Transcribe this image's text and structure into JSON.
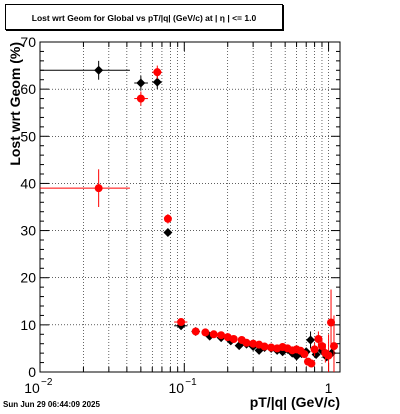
{
  "chart_data": {
    "type": "scatter",
    "title": "Lost wrt Geom for Global vs pT/|q| (GeV/c) at |  η  | <= 1.0",
    "xlabel": "pT/|q| (GeV/c)",
    "ylabel": "Lost wrt Geom (%)",
    "xscale": "log",
    "xlim": [
      0.01,
      1.2
    ],
    "ylim": [
      0,
      70
    ],
    "grid": true,
    "x_tick_labels": [
      "10",
      "−2",
      "10",
      "−1",
      "1"
    ],
    "y_tick_labels": [
      "0",
      "10",
      "20",
      "30",
      "40",
      "50",
      "60",
      "70"
    ],
    "series": [
      {
        "color": "#000000",
        "marker": "diamond",
        "points": [
          {
            "x": 0.0255,
            "y": 64.0,
            "xlo": 0.01,
            "xhi": 0.042,
            "ylo": 62.0,
            "yhi": 66.0
          },
          {
            "x": 0.05,
            "y": 61.3,
            "xlo": 0.045,
            "xhi": 0.056,
            "ylo": 59.8,
            "yhi": 62.8
          },
          {
            "x": 0.065,
            "y": 61.5,
            "xlo": 0.06,
            "xhi": 0.07,
            "ylo": 60.0,
            "yhi": 63.0
          },
          {
            "x": 0.077,
            "y": 29.6,
            "xlo": 0.074,
            "xhi": 0.08,
            "ylo": 28.8,
            "yhi": 30.4
          },
          {
            "x": 0.095,
            "y": 9.8,
            "xlo": 0.085,
            "xhi": 0.105,
            "ylo": 9.2,
            "yhi": 10.4
          },
          {
            "x": 0.12,
            "y": 8.6
          },
          {
            "x": 0.15,
            "y": 7.6
          },
          {
            "x": 0.18,
            "y": 7.3
          },
          {
            "x": 0.21,
            "y": 6.6
          },
          {
            "x": 0.24,
            "y": 5.6
          },
          {
            "x": 0.27,
            "y": 5.9
          },
          {
            "x": 0.3,
            "y": 5.4
          },
          {
            "x": 0.33,
            "y": 4.6
          },
          {
            "x": 0.36,
            "y": 5.2
          },
          {
            "x": 0.4,
            "y": 5.0
          },
          {
            "x": 0.44,
            "y": 4.6
          },
          {
            "x": 0.48,
            "y": 4.3
          },
          {
            "x": 0.52,
            "y": 4.8
          },
          {
            "x": 0.56,
            "y": 4.0
          },
          {
            "x": 0.6,
            "y": 3.4
          },
          {
            "x": 0.65,
            "y": 3.9
          },
          {
            "x": 0.7,
            "y": 4.3
          },
          {
            "x": 0.75,
            "y": 6.8,
            "ylo": 5.0,
            "yhi": 8.6
          },
          {
            "x": 0.82,
            "y": 3.7
          },
          {
            "x": 0.9,
            "y": 4.5
          },
          {
            "x": 0.97,
            "y": 3.2
          },
          {
            "x": 1.05,
            "y": 4.0
          }
        ]
      },
      {
        "color": "#ff0000",
        "marker": "circle",
        "points": [
          {
            "x": 0.0255,
            "y": 39.0,
            "xlo": 0.01,
            "xhi": 0.042,
            "ylo": 35.0,
            "yhi": 43.0
          },
          {
            "x": 0.05,
            "y": 58.0,
            "xlo": 0.045,
            "xhi": 0.056,
            "ylo": 56.5,
            "yhi": 59.5
          },
          {
            "x": 0.065,
            "y": 63.6,
            "xlo": 0.06,
            "xhi": 0.07,
            "ylo": 62.2,
            "yhi": 65.0
          },
          {
            "x": 0.077,
            "y": 32.5,
            "xlo": 0.074,
            "xhi": 0.08,
            "ylo": 31.5,
            "yhi": 33.5
          },
          {
            "x": 0.095,
            "y": 10.6,
            "xlo": 0.085,
            "xhi": 0.105,
            "ylo": 10.0,
            "yhi": 11.2
          },
          {
            "x": 0.12,
            "y": 8.6
          },
          {
            "x": 0.14,
            "y": 8.4
          },
          {
            "x": 0.16,
            "y": 8.0
          },
          {
            "x": 0.18,
            "y": 7.8
          },
          {
            "x": 0.2,
            "y": 7.4
          },
          {
            "x": 0.22,
            "y": 7.0
          },
          {
            "x": 0.25,
            "y": 6.8
          },
          {
            "x": 0.27,
            "y": 6.2
          },
          {
            "x": 0.3,
            "y": 6.0
          },
          {
            "x": 0.33,
            "y": 5.8
          },
          {
            "x": 0.36,
            "y": 5.4
          },
          {
            "x": 0.4,
            "y": 5.2
          },
          {
            "x": 0.44,
            "y": 5.0
          },
          {
            "x": 0.48,
            "y": 5.3
          },
          {
            "x": 0.52,
            "y": 5.0
          },
          {
            "x": 0.56,
            "y": 4.6
          },
          {
            "x": 0.6,
            "y": 4.8
          },
          {
            "x": 0.64,
            "y": 4.5
          },
          {
            "x": 0.68,
            "y": 3.8
          },
          {
            "x": 0.72,
            "y": 2.2
          },
          {
            "x": 0.76,
            "y": 1.8
          },
          {
            "x": 0.8,
            "y": 4.8,
            "ylo": 3.4,
            "yhi": 6.2
          },
          {
            "x": 0.85,
            "y": 7.0,
            "ylo": 5.4,
            "yhi": 8.6
          },
          {
            "x": 0.9,
            "y": 5.5,
            "ylo": 3.8,
            "yhi": 7.2
          },
          {
            "x": 0.95,
            "y": 4.0,
            "ylo": 2.0,
            "yhi": 6.0
          },
          {
            "x": 1.0,
            "y": 3.5,
            "ylo": 0.0,
            "yhi": 8.0
          },
          {
            "x": 1.04,
            "y": 10.5,
            "ylo": 5.0,
            "yhi": 17.5
          },
          {
            "x": 1.09,
            "y": 5.5,
            "ylo": 0.0,
            "yhi": 12.0
          }
        ]
      }
    ]
  },
  "footer": {
    "datestamp": "Sun Jun 29 06:44:09 2025"
  }
}
